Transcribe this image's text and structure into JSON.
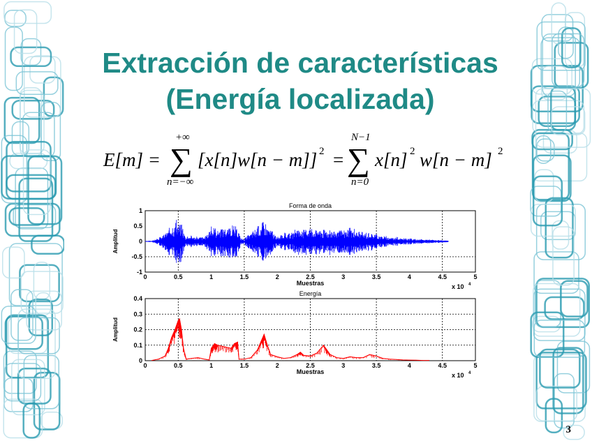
{
  "slide": {
    "title_line1": "Extracción de características",
    "title_line2": "(Energía localizada)",
    "page_number": "3",
    "accent_color": "#1f8a86",
    "decoration_colors": [
      "#2a9bb0",
      "#7cc4d6",
      "#b8dfe8"
    ]
  },
  "equation": {
    "lhs": "E[m] =",
    "sum1_upper": "+∞",
    "sum1_lower": "n=−∞",
    "sum1_body": "[x[n]w[n − m]]",
    "sum1_exp": "2",
    "equals": "=",
    "sum2_upper": "N−1",
    "sum2_lower": "n=0",
    "sum2_body": "x[n]",
    "sum2_exp1": "2",
    "sum2_body2": "w[n − m]",
    "sum2_exp2": "2",
    "sigma": "∑"
  },
  "chart_data": [
    {
      "type": "line",
      "title": "Forma de onda",
      "xlabel": "Muestras",
      "ylabel": "Amplitud",
      "x_multiplier": "x 10",
      "x_multiplier_exp": "4",
      "xlim": [
        0,
        5
      ],
      "ylim": [
        -1,
        1
      ],
      "xticks": [
        "0",
        "0.5",
        "1",
        "1.5",
        "2",
        "2.5",
        "3",
        "3.5",
        "4",
        "4.5",
        "5"
      ],
      "yticks": [
        "1",
        "0.5",
        "0",
        "-0.5",
        "-1"
      ],
      "grid": true,
      "color": "#0000ff",
      "envelope": {
        "x": [
          0,
          0.1,
          0.2,
          0.3,
          0.4,
          0.5,
          0.55,
          0.6,
          0.7,
          0.8,
          0.9,
          1.0,
          1.1,
          1.2,
          1.3,
          1.4,
          1.45,
          1.5,
          1.6,
          1.7,
          1.8,
          1.9,
          2.0,
          2.1,
          2.2,
          2.3,
          2.4,
          2.5,
          2.6,
          2.7,
          2.8,
          2.9,
          3.0,
          3.1,
          3.2,
          3.3,
          3.4,
          3.5,
          3.6,
          3.7,
          3.8,
          3.9,
          4.0,
          4.1,
          4.2,
          4.3,
          4.4,
          4.5,
          4.6
        ],
        "y": [
          0.01,
          0.03,
          0.1,
          0.3,
          0.55,
          0.75,
          0.7,
          0.2,
          0.2,
          0.15,
          0.15,
          0.5,
          0.45,
          0.55,
          0.55,
          0.5,
          0.1,
          0.1,
          0.3,
          0.5,
          0.7,
          0.45,
          0.15,
          0.3,
          0.25,
          0.45,
          0.4,
          0.5,
          0.45,
          0.4,
          0.45,
          0.35,
          0.4,
          0.45,
          0.4,
          0.3,
          0.35,
          0.25,
          0.2,
          0.15,
          0.15,
          0.1,
          0.1,
          0.08,
          0.07,
          0.06,
          0.05,
          0.04,
          0.02
        ]
      }
    },
    {
      "type": "line",
      "title": "Energía",
      "xlabel": "Muestras",
      "ylabel": "Amplitud",
      "x_multiplier": "x 10",
      "x_multiplier_exp": "4",
      "xlim": [
        0,
        5
      ],
      "ylim": [
        0,
        0.4
      ],
      "xticks": [
        "0",
        "0.5",
        "1",
        "1.5",
        "2",
        "2.5",
        "3",
        "3.5",
        "4",
        "4.5",
        "5"
      ],
      "yticks": [
        "0.4",
        "0.3",
        "0.2",
        "0.1",
        "0"
      ],
      "grid": true,
      "color": "#ff0000",
      "x": [
        0.1,
        0.2,
        0.3,
        0.35,
        0.4,
        0.45,
        0.5,
        0.52,
        0.55,
        0.58,
        0.62,
        0.7,
        0.8,
        0.9,
        0.97,
        1.0,
        1.05,
        1.1,
        1.2,
        1.3,
        1.35,
        1.4,
        1.42,
        1.5,
        1.6,
        1.7,
        1.75,
        1.8,
        1.85,
        1.9,
        2.0,
        2.1,
        2.2,
        2.3,
        2.35,
        2.4,
        2.5,
        2.6,
        2.7,
        2.75,
        2.8,
        2.9,
        3.0,
        3.1,
        3.2,
        3.3,
        3.4,
        3.5,
        3.6,
        3.7,
        3.8,
        3.9,
        4.0,
        4.1,
        4.2,
        4.3
      ],
      "y": [
        0.002,
        0.01,
        0.03,
        0.08,
        0.15,
        0.2,
        0.26,
        0.27,
        0.2,
        0.08,
        0.01,
        0.015,
        0.02,
        0.01,
        0.005,
        0.08,
        0.11,
        0.1,
        0.09,
        0.08,
        0.11,
        0.12,
        0.01,
        0.01,
        0.02,
        0.07,
        0.12,
        0.17,
        0.1,
        0.04,
        0.025,
        0.015,
        0.02,
        0.04,
        0.055,
        0.035,
        0.03,
        0.05,
        0.1,
        0.07,
        0.04,
        0.02,
        0.015,
        0.025,
        0.02,
        0.02,
        0.04,
        0.03,
        0.015,
        0.01,
        0.008,
        0.005,
        0.004,
        0.003,
        0.002,
        0.002
      ]
    }
  ]
}
